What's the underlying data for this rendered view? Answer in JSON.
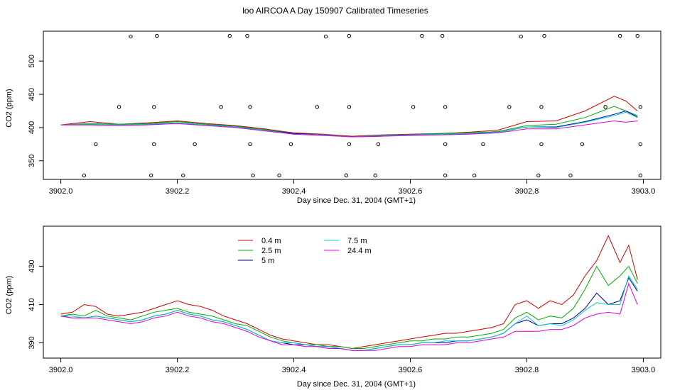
{
  "figure_title": "loo AIRCOA A  Day 150907  Calibrated Timeseries",
  "chart_data": [
    {
      "type": "line",
      "panel": "top",
      "xlabel": "Day since Dec. 31, 2004 (GMT+1)",
      "ylabel": "CO2 (ppm)",
      "xlim": [
        3901.97,
        3903.03
      ],
      "ylim": [
        322,
        545
      ],
      "x_ticks": [
        3902.0,
        3902.2,
        3902.4,
        3902.6,
        3902.8,
        3903.0
      ],
      "x_tick_labels": [
        "3902.0",
        "3902.2",
        "3902.4",
        "3902.6",
        "3902.8",
        "3903.0"
      ],
      "y_ticks": [
        350,
        400,
        450,
        500
      ],
      "y_tick_labels": [
        "350",
        "400",
        "450",
        "500"
      ],
      "grid": false,
      "x": [
        3902.0,
        3902.05,
        3902.1,
        3902.15,
        3902.2,
        3902.25,
        3902.3,
        3902.35,
        3902.4,
        3902.45,
        3902.5,
        3902.55,
        3902.6,
        3902.65,
        3902.7,
        3902.75,
        3902.8,
        3902.85,
        3902.9,
        3902.95,
        3902.97,
        3902.99
      ],
      "series": [
        {
          "color": "#cc0000",
          "values": [
            404,
            409,
            405,
            407,
            410,
            406,
            403,
            398,
            392,
            390,
            387,
            389,
            390,
            391,
            393,
            396,
            409,
            410,
            425,
            447,
            440,
            425
          ]
        },
        {
          "color": "#00aa00",
          "values": [
            404,
            406,
            405,
            406,
            409,
            405,
            402,
            397,
            391,
            389,
            386,
            388,
            389,
            391,
            392,
            394,
            403,
            405,
            415,
            432,
            425,
            418
          ]
        },
        {
          "color": "#000099",
          "values": [
            404,
            404,
            404,
            405,
            407,
            404,
            401,
            396,
            391,
            389,
            386,
            387,
            389,
            390,
            391,
            393,
            401,
            401,
            409,
            420,
            425,
            416
          ]
        },
        {
          "color": "#00cccc",
          "values": [
            404,
            405,
            404,
            405,
            407,
            404,
            401,
            396,
            390,
            389,
            386,
            388,
            389,
            390,
            391,
            393,
            401,
            400,
            408,
            418,
            423,
            415
          ]
        },
        {
          "color": "#dd00dd",
          "values": [
            404,
            404,
            403,
            404,
            406,
            403,
            400,
            395,
            390,
            388,
            386,
            387,
            388,
            389,
            390,
            392,
            398,
            398,
            404,
            410,
            408,
            410
          ]
        }
      ],
      "flag_points": {
        "x": [
          3902.04,
          3902.06,
          3902.1,
          3902.12,
          3902.155,
          3902.16,
          3902.16,
          3902.165,
          3902.21,
          3902.23,
          3902.275,
          3902.29,
          3902.32,
          3902.325,
          3902.325,
          3902.33,
          3902.375,
          3902.395,
          3902.44,
          3902.455,
          3902.49,
          3902.495,
          3902.495,
          3902.495,
          3902.54,
          3902.545,
          3902.605,
          3902.62,
          3902.655,
          3902.66,
          3902.66,
          3902.66,
          3902.71,
          3902.725,
          3902.77,
          3902.79,
          3902.82,
          3902.825,
          3902.825,
          3902.83,
          3902.875,
          3902.895,
          3902.935,
          3902.96,
          3902.99,
          3902.995,
          3902.995,
          3902.995
        ],
        "y": [
          328,
          375,
          431,
          537,
          328,
          375,
          431,
          538,
          328,
          375,
          431,
          538,
          538,
          431,
          375,
          328,
          328,
          375,
          431,
          537,
          328,
          375,
          431,
          538,
          328,
          375,
          431,
          538,
          538,
          431,
          375,
          328,
          328,
          375,
          431,
          537,
          328,
          375,
          431,
          538,
          328,
          375,
          431,
          538,
          538,
          431,
          375,
          328
        ]
      }
    },
    {
      "type": "line",
      "panel": "bottom",
      "xlabel": "Day since Dec. 31, 2004 (GMT+1)",
      "ylabel": "CO2 (ppm)",
      "xlim": [
        3901.97,
        3903.03
      ],
      "ylim": [
        382,
        451
      ],
      "x_ticks": [
        3902.0,
        3902.2,
        3902.4,
        3902.6,
        3902.8,
        3903.0
      ],
      "x_tick_labels": [
        "3902.0",
        "3902.2",
        "3902.4",
        "3902.6",
        "3902.8",
        "3903.0"
      ],
      "y_ticks": [
        390,
        410,
        430
      ],
      "y_tick_labels": [
        "390",
        "410",
        "430"
      ],
      "grid": false,
      "legend": "top-left",
      "x": [
        3902.0,
        3902.02,
        3902.04,
        3902.06,
        3902.08,
        3902.1,
        3902.12,
        3902.14,
        3902.16,
        3902.18,
        3902.2,
        3902.22,
        3902.24,
        3902.26,
        3902.28,
        3902.3,
        3902.32,
        3902.34,
        3902.36,
        3902.38,
        3902.4,
        3902.42,
        3902.44,
        3902.46,
        3902.48,
        3902.5,
        3902.52,
        3902.54,
        3902.56,
        3902.58,
        3902.6,
        3902.62,
        3902.64,
        3902.66,
        3902.68,
        3902.7,
        3902.72,
        3902.74,
        3902.76,
        3902.78,
        3902.8,
        3902.82,
        3902.84,
        3902.86,
        3902.88,
        3902.9,
        3902.92,
        3902.94,
        3902.96,
        3902.975,
        3902.99
      ],
      "series": [
        {
          "name": "0.4 m",
          "color": "#cc0000",
          "values": [
            405,
            406,
            410,
            409,
            405,
            404,
            405,
            406,
            408,
            410,
            412,
            410,
            409,
            407,
            404,
            402,
            400,
            397,
            394,
            392,
            391,
            390,
            389,
            389,
            388,
            387,
            388,
            389,
            390,
            391,
            392,
            393,
            394,
            395,
            395,
            396,
            397,
            398,
            400,
            410,
            412,
            408,
            412,
            410,
            415,
            425,
            433,
            446,
            432,
            441,
            423
          ]
        },
        {
          "name": "2.5 m",
          "color": "#00aa00",
          "values": [
            404,
            405,
            404,
            407,
            404,
            403,
            402,
            404,
            406,
            407,
            408,
            406,
            405,
            404,
            402,
            400,
            399,
            396,
            393,
            391,
            390,
            389,
            389,
            388,
            388,
            387,
            387,
            388,
            389,
            390,
            391,
            391,
            392,
            392,
            393,
            393,
            394,
            395,
            397,
            403,
            406,
            402,
            404,
            403,
            408,
            418,
            430,
            420,
            425,
            430,
            421
          ]
        },
        {
          "name": "5 m",
          "color": "#000099",
          "values": [
            404,
            403,
            403,
            404,
            403,
            402,
            401,
            402,
            404,
            405,
            407,
            405,
            404,
            402,
            401,
            399,
            397,
            394,
            391,
            390,
            389,
            389,
            388,
            388,
            387,
            386,
            386,
            387,
            388,
            389,
            389,
            390,
            390,
            390,
            391,
            391,
            392,
            393,
            395,
            400,
            402,
            399,
            400,
            400,
            403,
            408,
            416,
            410,
            412,
            424,
            417
          ]
        },
        {
          "name": "7.5 m",
          "color": "#00cccc",
          "values": [
            404,
            404,
            403,
            404,
            403,
            402,
            401,
            402,
            404,
            405,
            407,
            405,
            404,
            402,
            401,
            399,
            397,
            394,
            391,
            390,
            390,
            389,
            388,
            388,
            387,
            386,
            386,
            387,
            388,
            389,
            389,
            390,
            390,
            391,
            391,
            391,
            392,
            393,
            395,
            400,
            404,
            399,
            400,
            399,
            402,
            407,
            411,
            410,
            410,
            425,
            418
          ]
        },
        {
          "name": "24.4 m",
          "color": "#dd00dd",
          "values": [
            404,
            403,
            403,
            403,
            402,
            401,
            400,
            401,
            403,
            404,
            406,
            404,
            403,
            401,
            400,
            398,
            396,
            393,
            391,
            389,
            389,
            388,
            388,
            387,
            387,
            386,
            386,
            386,
            387,
            388,
            388,
            389,
            389,
            389,
            390,
            390,
            391,
            392,
            393,
            396,
            396,
            396,
            397,
            397,
            399,
            403,
            405,
            406,
            405,
            421,
            410
          ]
        }
      ]
    }
  ]
}
